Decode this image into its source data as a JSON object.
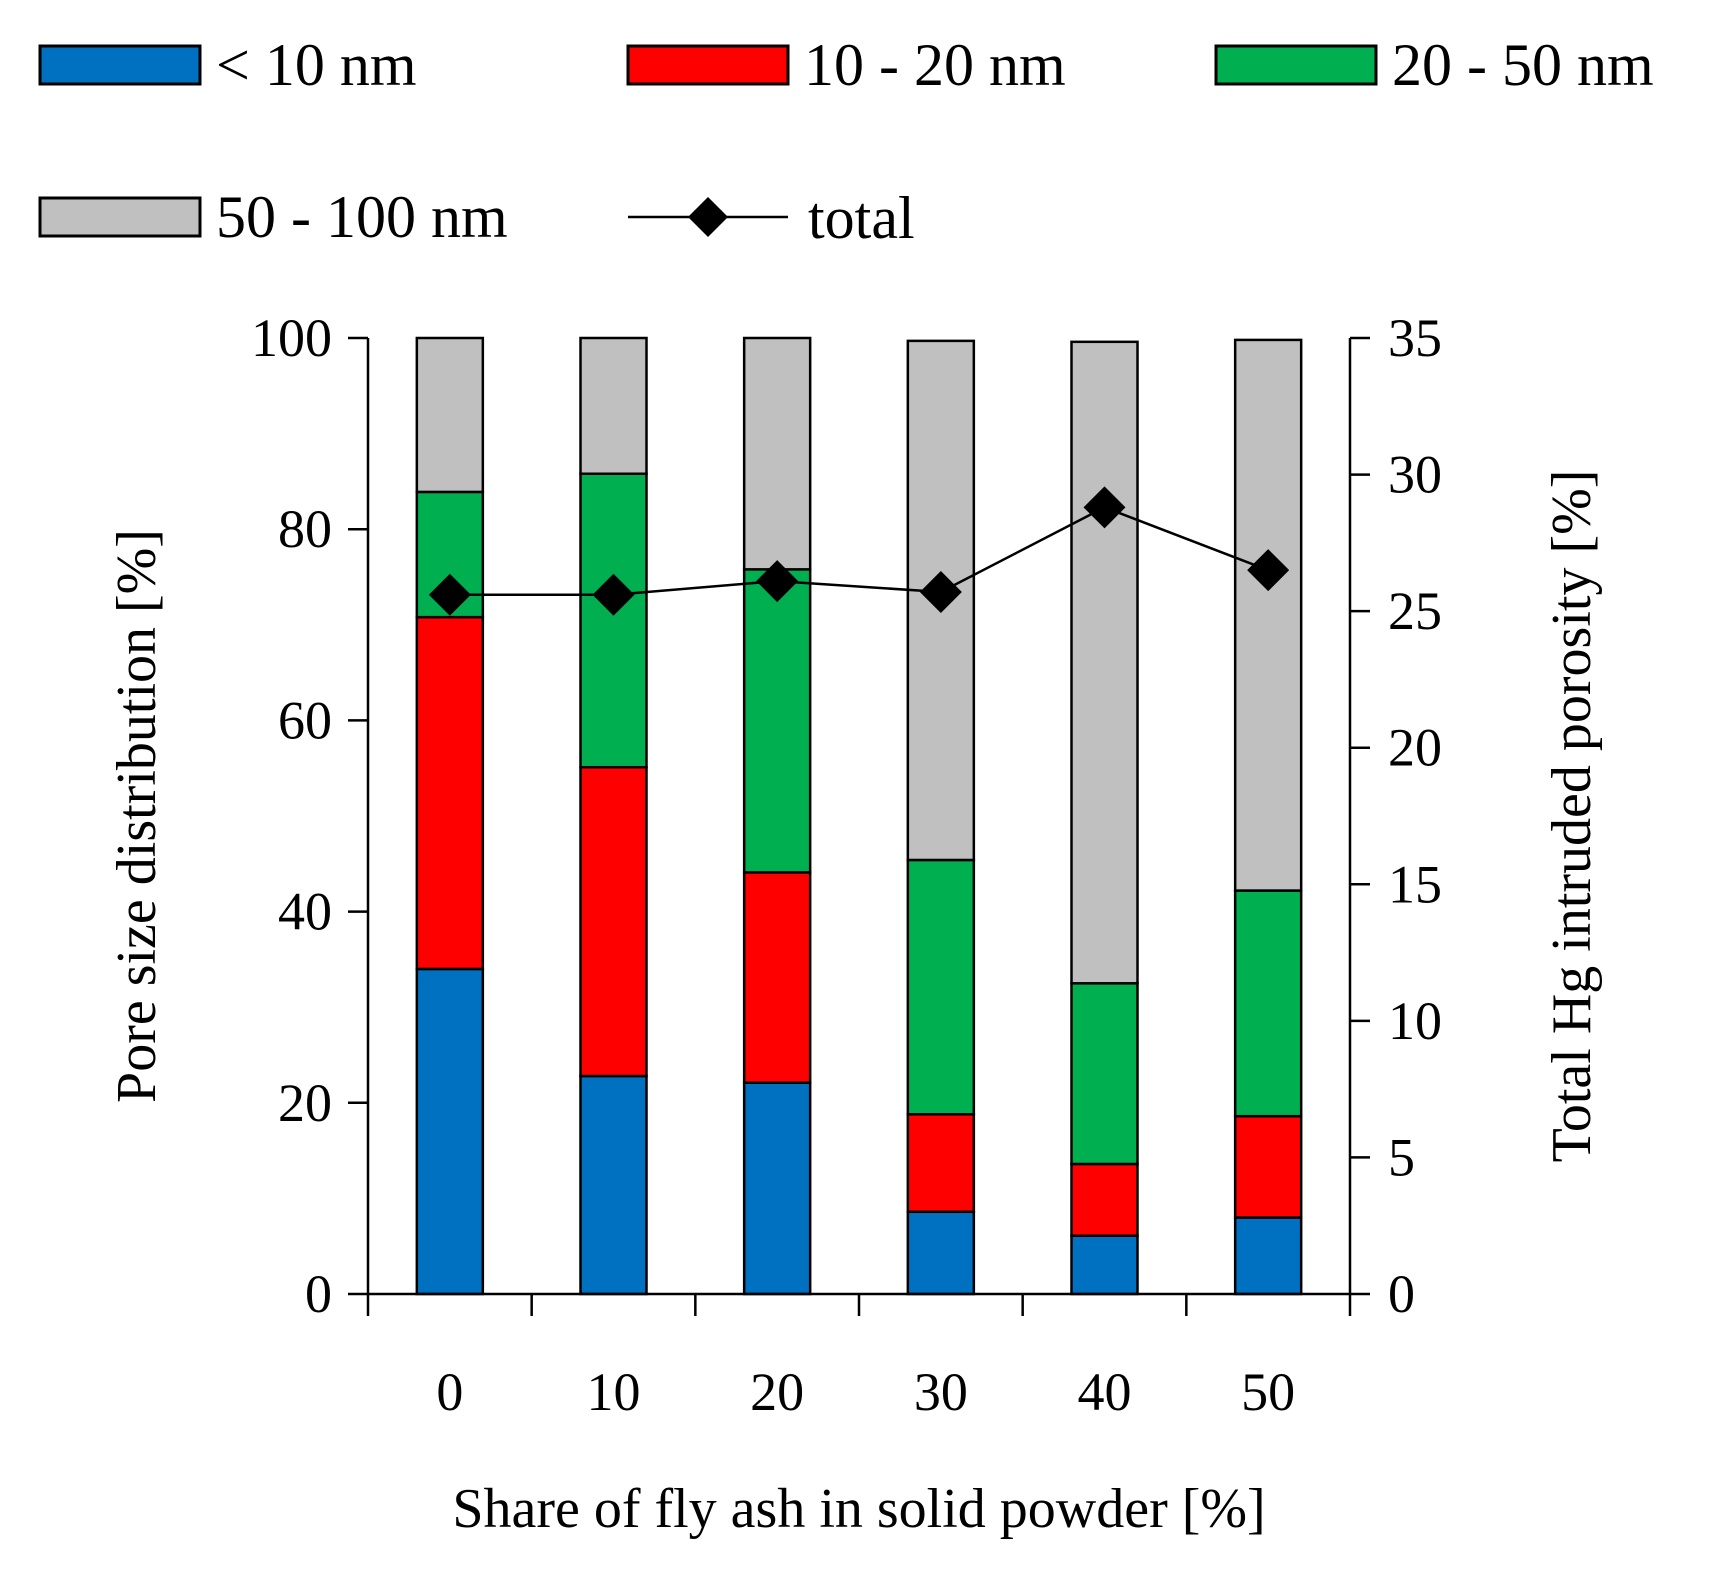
{
  "chart_data": {
    "type": "bar",
    "stacked": true,
    "categories": [
      "0",
      "10",
      "20",
      "30",
      "40",
      "50"
    ],
    "series": [
      {
        "name": "< 10 nm",
        "color": "#0070C0",
        "values": [
          34.0,
          22.8,
          22.1,
          8.6,
          6.1,
          8.0
        ]
      },
      {
        "name": "10 - 20 nm",
        "color": "#FF0000",
        "values": [
          36.8,
          32.3,
          22.0,
          10.2,
          7.5,
          10.6
        ]
      },
      {
        "name": "20 - 50 nm",
        "color": "#00B050",
        "values": [
          13.1,
          30.7,
          31.7,
          26.6,
          18.9,
          23.6
        ]
      },
      {
        "name": "50 - 100 nm",
        "color": "#C0C0C0",
        "values": [
          16.1,
          14.2,
          24.2,
          54.3,
          67.1,
          57.6
        ]
      }
    ],
    "line_series": {
      "name": "total",
      "axis": "right",
      "marker": "diamond",
      "color": "#000000",
      "values": [
        25.6,
        25.6,
        26.1,
        25.7,
        28.8,
        26.5
      ]
    },
    "xlabel": "Share of fly ash in solid powder [%]",
    "ylabel": "Pore size distribution [%]",
    "y2label": "Total Hg intruded porosity [%]",
    "ylim": [
      0,
      100
    ],
    "y2lim": [
      0,
      35
    ],
    "yticks": [
      "0",
      "20",
      "40",
      "60",
      "80",
      "100"
    ],
    "y2ticks": [
      "0",
      "5",
      "10",
      "15",
      "20",
      "25",
      "30",
      "35"
    ],
    "legend_placement": "top",
    "grid": false
  }
}
